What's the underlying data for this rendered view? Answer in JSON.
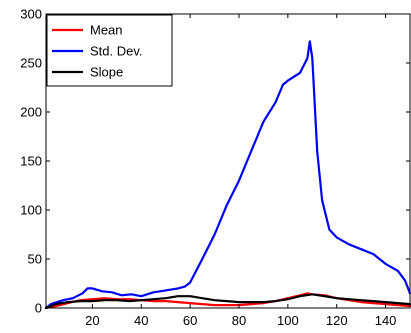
{
  "chart_data": {
    "type": "line",
    "title": "",
    "xlabel": "",
    "ylabel": "",
    "xlim": [
      1,
      150
    ],
    "ylim": [
      0,
      300
    ],
    "xticks": [
      20,
      40,
      60,
      80,
      100,
      120,
      140
    ],
    "yticks": [
      0,
      50,
      100,
      150,
      200,
      250,
      300
    ],
    "grid": false,
    "legend_position": "top-left",
    "series": [
      {
        "name": "Mean",
        "color": "#ff0000",
        "points": [
          [
            1,
            0
          ],
          [
            5,
            2
          ],
          [
            10,
            5
          ],
          [
            15,
            8
          ],
          [
            20,
            9
          ],
          [
            25,
            10
          ],
          [
            30,
            9
          ],
          [
            35,
            9
          ],
          [
            40,
            8
          ],
          [
            45,
            7
          ],
          [
            50,
            7
          ],
          [
            55,
            6
          ],
          [
            60,
            5
          ],
          [
            65,
            4
          ],
          [
            70,
            3
          ],
          [
            75,
            3
          ],
          [
            80,
            3
          ],
          [
            85,
            4
          ],
          [
            90,
            5
          ],
          [
            95,
            7
          ],
          [
            100,
            10
          ],
          [
            105,
            13
          ],
          [
            108,
            15
          ],
          [
            110,
            14
          ],
          [
            115,
            13
          ],
          [
            120,
            10
          ],
          [
            125,
            8
          ],
          [
            130,
            6
          ],
          [
            135,
            5
          ],
          [
            140,
            4
          ],
          [
            145,
            3
          ],
          [
            150,
            2
          ]
        ]
      },
      {
        "name": "Std. Dev.",
        "color": "#0000ff",
        "points": [
          [
            1,
            0
          ],
          [
            3,
            4
          ],
          [
            8,
            8
          ],
          [
            12,
            10
          ],
          [
            16,
            15
          ],
          [
            18,
            20
          ],
          [
            20,
            20
          ],
          [
            24,
            17
          ],
          [
            28,
            16
          ],
          [
            32,
            13
          ],
          [
            36,
            14
          ],
          [
            40,
            12
          ],
          [
            45,
            16
          ],
          [
            50,
            18
          ],
          [
            55,
            20
          ],
          [
            58,
            22
          ],
          [
            60,
            26
          ],
          [
            65,
            50
          ],
          [
            70,
            75
          ],
          [
            75,
            105
          ],
          [
            80,
            130
          ],
          [
            85,
            160
          ],
          [
            90,
            190
          ],
          [
            95,
            210
          ],
          [
            98,
            228
          ],
          [
            100,
            232
          ],
          [
            105,
            240
          ],
          [
            108,
            255
          ],
          [
            109,
            272
          ],
          [
            110,
            255
          ],
          [
            112,
            160
          ],
          [
            114,
            110
          ],
          [
            117,
            80
          ],
          [
            120,
            72
          ],
          [
            125,
            65
          ],
          [
            130,
            60
          ],
          [
            135,
            55
          ],
          [
            140,
            45
          ],
          [
            145,
            38
          ],
          [
            148,
            28
          ],
          [
            150,
            15
          ]
        ]
      },
      {
        "name": "Slope",
        "color": "#000000",
        "points": [
          [
            1,
            0
          ],
          [
            5,
            4
          ],
          [
            10,
            6
          ],
          [
            15,
            7
          ],
          [
            20,
            7
          ],
          [
            25,
            8
          ],
          [
            30,
            8
          ],
          [
            35,
            7
          ],
          [
            40,
            8
          ],
          [
            45,
            9
          ],
          [
            50,
            10
          ],
          [
            55,
            12
          ],
          [
            60,
            12
          ],
          [
            65,
            10
          ],
          [
            70,
            8
          ],
          [
            75,
            7
          ],
          [
            80,
            6
          ],
          [
            85,
            6
          ],
          [
            90,
            6
          ],
          [
            95,
            7
          ],
          [
            100,
            9
          ],
          [
            105,
            12
          ],
          [
            110,
            14
          ],
          [
            115,
            12
          ],
          [
            120,
            10
          ],
          [
            125,
            9
          ],
          [
            130,
            8
          ],
          [
            135,
            7
          ],
          [
            140,
            6
          ],
          [
            145,
            5
          ],
          [
            150,
            4
          ]
        ]
      }
    ]
  }
}
